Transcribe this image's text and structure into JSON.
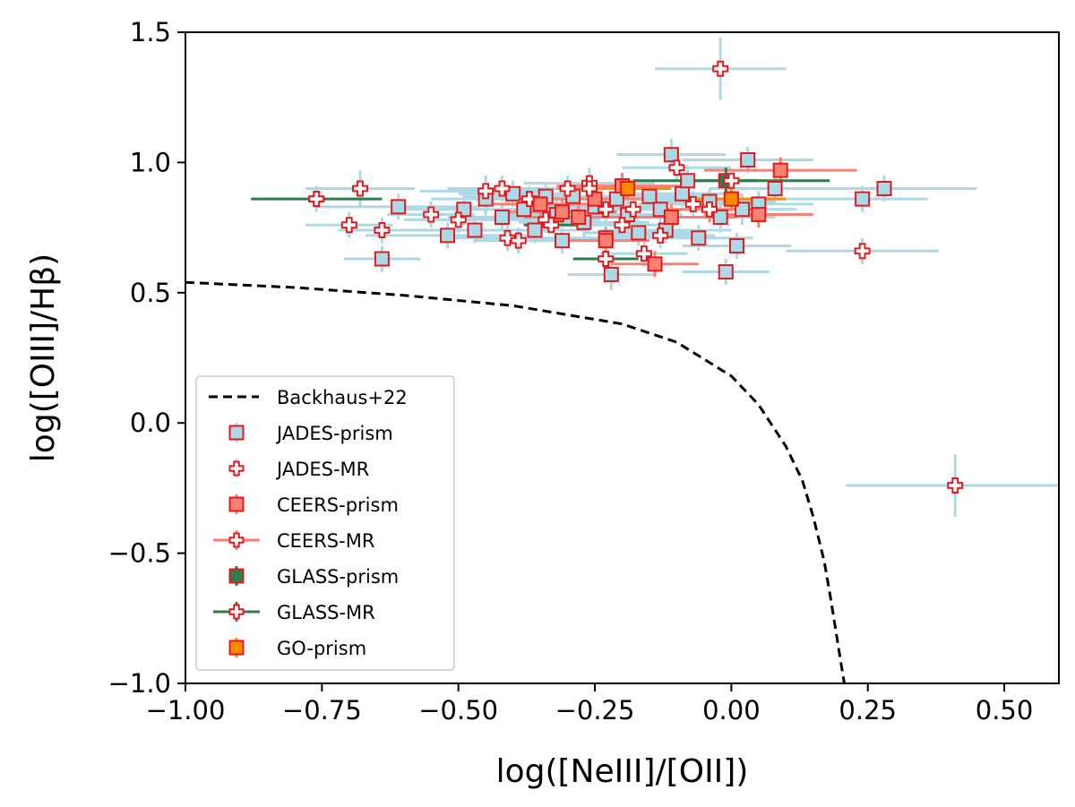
{
  "chart_data": {
    "type": "scatter",
    "title": "",
    "xlabel": "log([NeIII]/[OII])",
    "ylabel": "log([OIII]/Hβ)",
    "xlim": [
      -1.0,
      0.6
    ],
    "ylim": [
      -1.0,
      1.5
    ],
    "xticks": [
      -1.0,
      -0.75,
      -0.5,
      -0.25,
      0.0,
      0.25,
      0.5
    ],
    "xtick_labels": [
      "−1.00",
      "−0.75",
      "−0.50",
      "−0.25",
      "0.00",
      "0.25",
      "0.50"
    ],
    "yticks": [
      -1.0,
      -0.5,
      0.0,
      0.5,
      1.0,
      1.5
    ],
    "ytick_labels": [
      "−1.0",
      "−0.5",
      "0.0",
      "0.5",
      "1.0",
      "1.5"
    ],
    "grid": false,
    "legend_position": "lower-left",
    "colors": {
      "jades_err": "#add8e6",
      "ceers_err": "#fa8072",
      "glass_err": "#2e7d4f",
      "go_err": "#ff8c00",
      "marker_edge": "#e31a1c",
      "curve": "#000000"
    },
    "curve": {
      "name": "Backhaus+22",
      "x": [
        -1.0,
        -0.8,
        -0.6,
        -0.4,
        -0.2,
        -0.1,
        0.0,
        0.05,
        0.1,
        0.13,
        0.15,
        0.17,
        0.18,
        0.19,
        0.2,
        0.207
      ],
      "y": [
        0.54,
        0.52,
        0.49,
        0.45,
        0.38,
        0.31,
        0.18,
        0.07,
        -0.09,
        -0.22,
        -0.36,
        -0.53,
        -0.65,
        -0.78,
        -0.91,
        -1.0
      ]
    },
    "series": [
      {
        "name": "JADES-prism",
        "marker": "square",
        "fill": "#add8e6",
        "err_color": "#add8e6",
        "points": [
          {
            "x": -0.64,
            "y": 0.63,
            "xerr": 0.07,
            "yerr": 0.05
          },
          {
            "x": -0.61,
            "y": 0.83,
            "xerr": 0.15,
            "yerr": 0.05
          },
          {
            "x": -0.52,
            "y": 0.72,
            "xerr": 0.15,
            "yerr": 0.05
          },
          {
            "x": -0.49,
            "y": 0.82,
            "xerr": 0.12,
            "yerr": 0.06
          },
          {
            "x": -0.47,
            "y": 0.74,
            "xerr": 0.12,
            "yerr": 0.05
          },
          {
            "x": -0.45,
            "y": 0.86,
            "xerr": 0.1,
            "yerr": 0.08
          },
          {
            "x": -0.42,
            "y": 0.79,
            "xerr": 0.1,
            "yerr": 0.05
          },
          {
            "x": -0.4,
            "y": 0.88,
            "xerr": 0.1,
            "yerr": 0.05
          },
          {
            "x": -0.38,
            "y": 0.82,
            "xerr": 0.12,
            "yerr": 0.06
          },
          {
            "x": -0.36,
            "y": 0.74,
            "xerr": 0.1,
            "yerr": 0.05
          },
          {
            "x": -0.34,
            "y": 0.87,
            "xerr": 0.15,
            "yerr": 0.05
          },
          {
            "x": -0.32,
            "y": 0.8,
            "xerr": 0.1,
            "yerr": 0.06
          },
          {
            "x": -0.31,
            "y": 0.7,
            "xerr": 0.1,
            "yerr": 0.05
          },
          {
            "x": -0.29,
            "y": 0.87,
            "xerr": 0.15,
            "yerr": 0.05
          },
          {
            "x": -0.27,
            "y": 0.77,
            "xerr": 0.12,
            "yerr": 0.06
          },
          {
            "x": -0.25,
            "y": 0.83,
            "xerr": 0.12,
            "yerr": 0.05
          },
          {
            "x": -0.23,
            "y": 0.71,
            "xerr": 0.1,
            "yerr": 0.05
          },
          {
            "x": -0.22,
            "y": 0.57,
            "xerr": 0.08,
            "yerr": 0.06
          },
          {
            "x": -0.21,
            "y": 0.86,
            "xerr": 0.15,
            "yerr": 0.05
          },
          {
            "x": -0.19,
            "y": 0.8,
            "xerr": 0.1,
            "yerr": 0.06
          },
          {
            "x": -0.17,
            "y": 0.73,
            "xerr": 0.1,
            "yerr": 0.05
          },
          {
            "x": -0.15,
            "y": 0.87,
            "xerr": 0.12,
            "yerr": 0.05
          },
          {
            "x": -0.13,
            "y": 0.82,
            "xerr": 0.1,
            "yerr": 0.06
          },
          {
            "x": -0.12,
            "y": 0.74,
            "xerr": 0.12,
            "yerr": 0.05
          },
          {
            "x": -0.11,
            "y": 1.03,
            "xerr": 0.1,
            "yerr": 0.06
          },
          {
            "x": -0.09,
            "y": 0.88,
            "xerr": 0.1,
            "yerr": 0.05
          },
          {
            "x": -0.08,
            "y": 0.93,
            "xerr": 0.12,
            "yerr": 0.06
          },
          {
            "x": -0.06,
            "y": 0.71,
            "xerr": 0.1,
            "yerr": 0.05
          },
          {
            "x": -0.04,
            "y": 0.85,
            "xerr": 0.12,
            "yerr": 0.05
          },
          {
            "x": -0.02,
            "y": 0.79,
            "xerr": 0.1,
            "yerr": 0.06
          },
          {
            "x": -0.01,
            "y": 0.58,
            "xerr": 0.08,
            "yerr": 0.05
          },
          {
            "x": 0.0,
            "y": 0.86,
            "xerr": 0.12,
            "yerr": 0.05
          },
          {
            "x": 0.01,
            "y": 0.68,
            "xerr": 0.1,
            "yerr": 0.05
          },
          {
            "x": 0.02,
            "y": 0.82,
            "xerr": 0.1,
            "yerr": 0.06
          },
          {
            "x": 0.03,
            "y": 1.01,
            "xerr": 0.12,
            "yerr": 0.05
          },
          {
            "x": 0.05,
            "y": 0.84,
            "xerr": 0.1,
            "yerr": 0.05
          },
          {
            "x": 0.08,
            "y": 0.9,
            "xerr": 0.12,
            "yerr": 0.06
          },
          {
            "x": 0.24,
            "y": 0.86,
            "xerr": 0.12,
            "yerr": 0.05
          },
          {
            "x": 0.28,
            "y": 0.9,
            "xerr": 0.17,
            "yerr": 0.05
          }
        ]
      },
      {
        "name": "JADES-MR",
        "marker": "plus",
        "fill": "#ffffff",
        "err_color": "#add8e6",
        "points": [
          {
            "x": -0.76,
            "y": 0.86,
            "xerr": 0.1,
            "yerr": 0.05
          },
          {
            "x": -0.7,
            "y": 0.76,
            "xerr": 0.08,
            "yerr": 0.05
          },
          {
            "x": -0.68,
            "y": 0.9,
            "xerr": 0.1,
            "yerr": 0.07
          },
          {
            "x": -0.64,
            "y": 0.74,
            "xerr": 0.08,
            "yerr": 0.05
          },
          {
            "x": -0.55,
            "y": 0.8,
            "xerr": 0.08,
            "yerr": 0.05
          },
          {
            "x": -0.5,
            "y": 0.78,
            "xerr": 0.1,
            "yerr": 0.05
          },
          {
            "x": -0.45,
            "y": 0.89,
            "xerr": 0.12,
            "yerr": 0.06
          },
          {
            "x": -0.42,
            "y": 0.9,
            "xerr": 0.1,
            "yerr": 0.05
          },
          {
            "x": -0.41,
            "y": 0.71,
            "xerr": 0.1,
            "yerr": 0.05
          },
          {
            "x": -0.39,
            "y": 0.7,
            "xerr": 0.08,
            "yerr": 0.05
          },
          {
            "x": -0.37,
            "y": 0.86,
            "xerr": 0.12,
            "yerr": 0.05
          },
          {
            "x": -0.34,
            "y": 0.78,
            "xerr": 0.1,
            "yerr": 0.05
          },
          {
            "x": -0.3,
            "y": 0.9,
            "xerr": 0.1,
            "yerr": 0.05
          },
          {
            "x": -0.26,
            "y": 0.92,
            "xerr": 0.12,
            "yerr": 0.06
          },
          {
            "x": -0.23,
            "y": 0.82,
            "xerr": 0.1,
            "yerr": 0.05
          },
          {
            "x": -0.2,
            "y": 0.76,
            "xerr": 0.1,
            "yerr": 0.05
          },
          {
            "x": -0.18,
            "y": 0.82,
            "xerr": 0.12,
            "yerr": 0.05
          },
          {
            "x": -0.16,
            "y": 0.65,
            "xerr": 0.08,
            "yerr": 0.05
          },
          {
            "x": -0.13,
            "y": 0.72,
            "xerr": 0.1,
            "yerr": 0.05
          },
          {
            "x": -0.1,
            "y": 0.98,
            "xerr": 0.1,
            "yerr": 0.05
          },
          {
            "x": -0.07,
            "y": 0.84,
            "xerr": 0.1,
            "yerr": 0.05
          },
          {
            "x": -0.02,
            "y": 1.36,
            "xerr": 0.12,
            "yerr": 0.12
          },
          {
            "x": 0.24,
            "y": 0.66,
            "xerr": 0.14,
            "yerr": 0.05
          },
          {
            "x": 0.41,
            "y": -0.24,
            "xerr": 0.2,
            "yerr": 0.12
          }
        ]
      },
      {
        "name": "CEERS-prism",
        "marker": "square",
        "fill": "#fa8072",
        "err_color": "#fa8072",
        "points": [
          {
            "x": -0.35,
            "y": 0.84,
            "xerr": 0.1,
            "yerr": 0.05
          },
          {
            "x": -0.31,
            "y": 0.81,
            "xerr": 0.1,
            "yerr": 0.05
          },
          {
            "x": -0.28,
            "y": 0.79,
            "xerr": 0.1,
            "yerr": 0.05
          },
          {
            "x": -0.25,
            "y": 0.86,
            "xerr": 0.1,
            "yerr": 0.05
          },
          {
            "x": -0.23,
            "y": 0.7,
            "xerr": 0.08,
            "yerr": 0.05
          },
          {
            "x": -0.2,
            "y": 0.91,
            "xerr": 0.12,
            "yerr": 0.05
          },
          {
            "x": -0.14,
            "y": 0.61,
            "xerr": 0.08,
            "yerr": 0.05
          },
          {
            "x": -0.11,
            "y": 0.79,
            "xerr": 0.12,
            "yerr": 0.05
          },
          {
            "x": 0.05,
            "y": 0.8,
            "xerr": 0.1,
            "yerr": 0.05
          },
          {
            "x": 0.09,
            "y": 0.97,
            "xerr": 0.14,
            "yerr": 0.05
          }
        ]
      },
      {
        "name": "CEERS-MR",
        "marker": "plus",
        "fill": "#ffffff",
        "err_color": "#fa8072",
        "points": [
          {
            "x": -0.26,
            "y": 0.9,
            "xerr": 0.06,
            "yerr": 0.05
          },
          {
            "x": -0.04,
            "y": 0.82,
            "xerr": 0.1,
            "yerr": 0.05
          }
        ]
      },
      {
        "name": "GLASS-prism",
        "marker": "square",
        "fill": "#2e7d4f",
        "err_color": "#2e7d4f",
        "points": [
          {
            "x": -0.01,
            "y": 0.93,
            "xerr": 0.06,
            "yerr": 0.05
          }
        ]
      },
      {
        "name": "GLASS-MR",
        "marker": "plus",
        "fill": "#ffffff",
        "err_color": "#2e7d4f",
        "points": [
          {
            "x": -0.76,
            "y": 0.86,
            "xerr": 0.12,
            "yerr": 0.03
          },
          {
            "x": -0.23,
            "y": 0.63,
            "xerr": 0.06,
            "yerr": 0.03
          },
          {
            "x": -0.33,
            "y": 0.76,
            "xerr": 0.05,
            "yerr": 0.03
          },
          {
            "x": 0.0,
            "y": 0.93,
            "xerr": 0.18,
            "yerr": 0.03
          }
        ]
      },
      {
        "name": "GO-prism",
        "marker": "square",
        "fill": "#ff8c00",
        "err_color": "#ff8c00",
        "points": [
          {
            "x": -0.19,
            "y": 0.9,
            "xerr": 0.08,
            "yerr": 0.04
          },
          {
            "x": 0.0,
            "y": 0.86,
            "xerr": 0.1,
            "yerr": 0.04
          }
        ]
      }
    ],
    "legend": [
      "Backhaus+22",
      "JADES-prism",
      "JADES-MR",
      "CEERS-prism",
      "CEERS-MR",
      "GLASS-prism",
      "GLASS-MR",
      "GO-prism"
    ]
  }
}
